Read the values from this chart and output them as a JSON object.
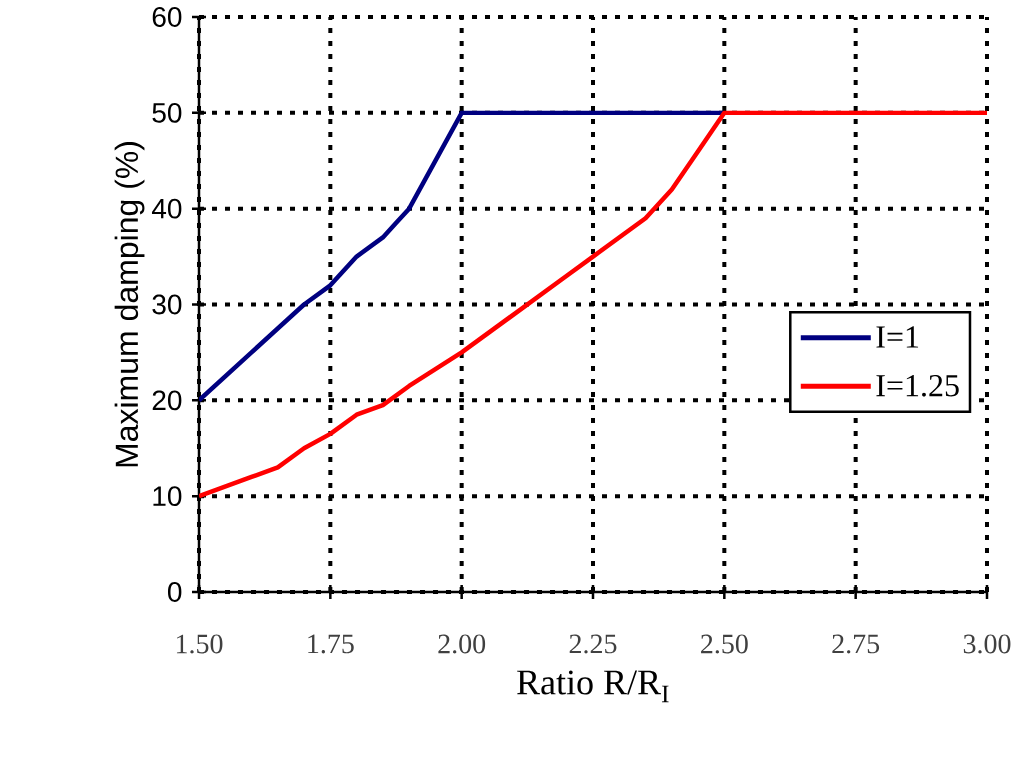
{
  "chart_data": {
    "type": "line",
    "xlabel": "Ratio R/R$_{I}$",
    "ylabel": "Maximum damping (%)",
    "xlim": [
      1.5,
      3.0
    ],
    "xticks": [
      {
        "value": 1.5,
        "label": "1.50"
      },
      {
        "value": 1.75,
        "label": "1.75"
      },
      {
        "value": 2.0,
        "label": "2.00"
      },
      {
        "value": 2.25,
        "label": "2.25"
      },
      {
        "value": 2.5,
        "label": "2.50"
      },
      {
        "value": 2.75,
        "label": "2.75"
      },
      {
        "value": 3.0,
        "label": "3.00"
      }
    ],
    "ylim": [
      0,
      60
    ],
    "yticks": [
      0,
      10,
      20,
      30,
      40,
      50,
      60
    ],
    "grid": true,
    "legend": "right",
    "line_style": "solid",
    "marker": "none",
    "series": [
      {
        "name": "I=1",
        "color": "#000080",
        "x": [
          1.5,
          1.6,
          1.7,
          1.75,
          1.8,
          1.85,
          1.875,
          1.9,
          1.95,
          2.0,
          2.5
        ],
        "values": [
          20,
          25,
          30,
          32,
          35,
          37,
          38.5,
          40,
          45,
          50,
          50
        ]
      },
      {
        "name": "I=1.25",
        "color": "#ff0000",
        "x": [
          1.5,
          1.6,
          1.65,
          1.7,
          1.75,
          1.8,
          1.85,
          1.9,
          2.0,
          2.1,
          2.2,
          2.25,
          2.35,
          2.4,
          2.45,
          2.5,
          3.0
        ],
        "values": [
          10,
          12,
          13,
          15,
          16.5,
          18.5,
          19.5,
          21.5,
          25,
          29,
          33,
          35,
          39,
          42,
          46,
          50,
          50
        ]
      }
    ]
  }
}
